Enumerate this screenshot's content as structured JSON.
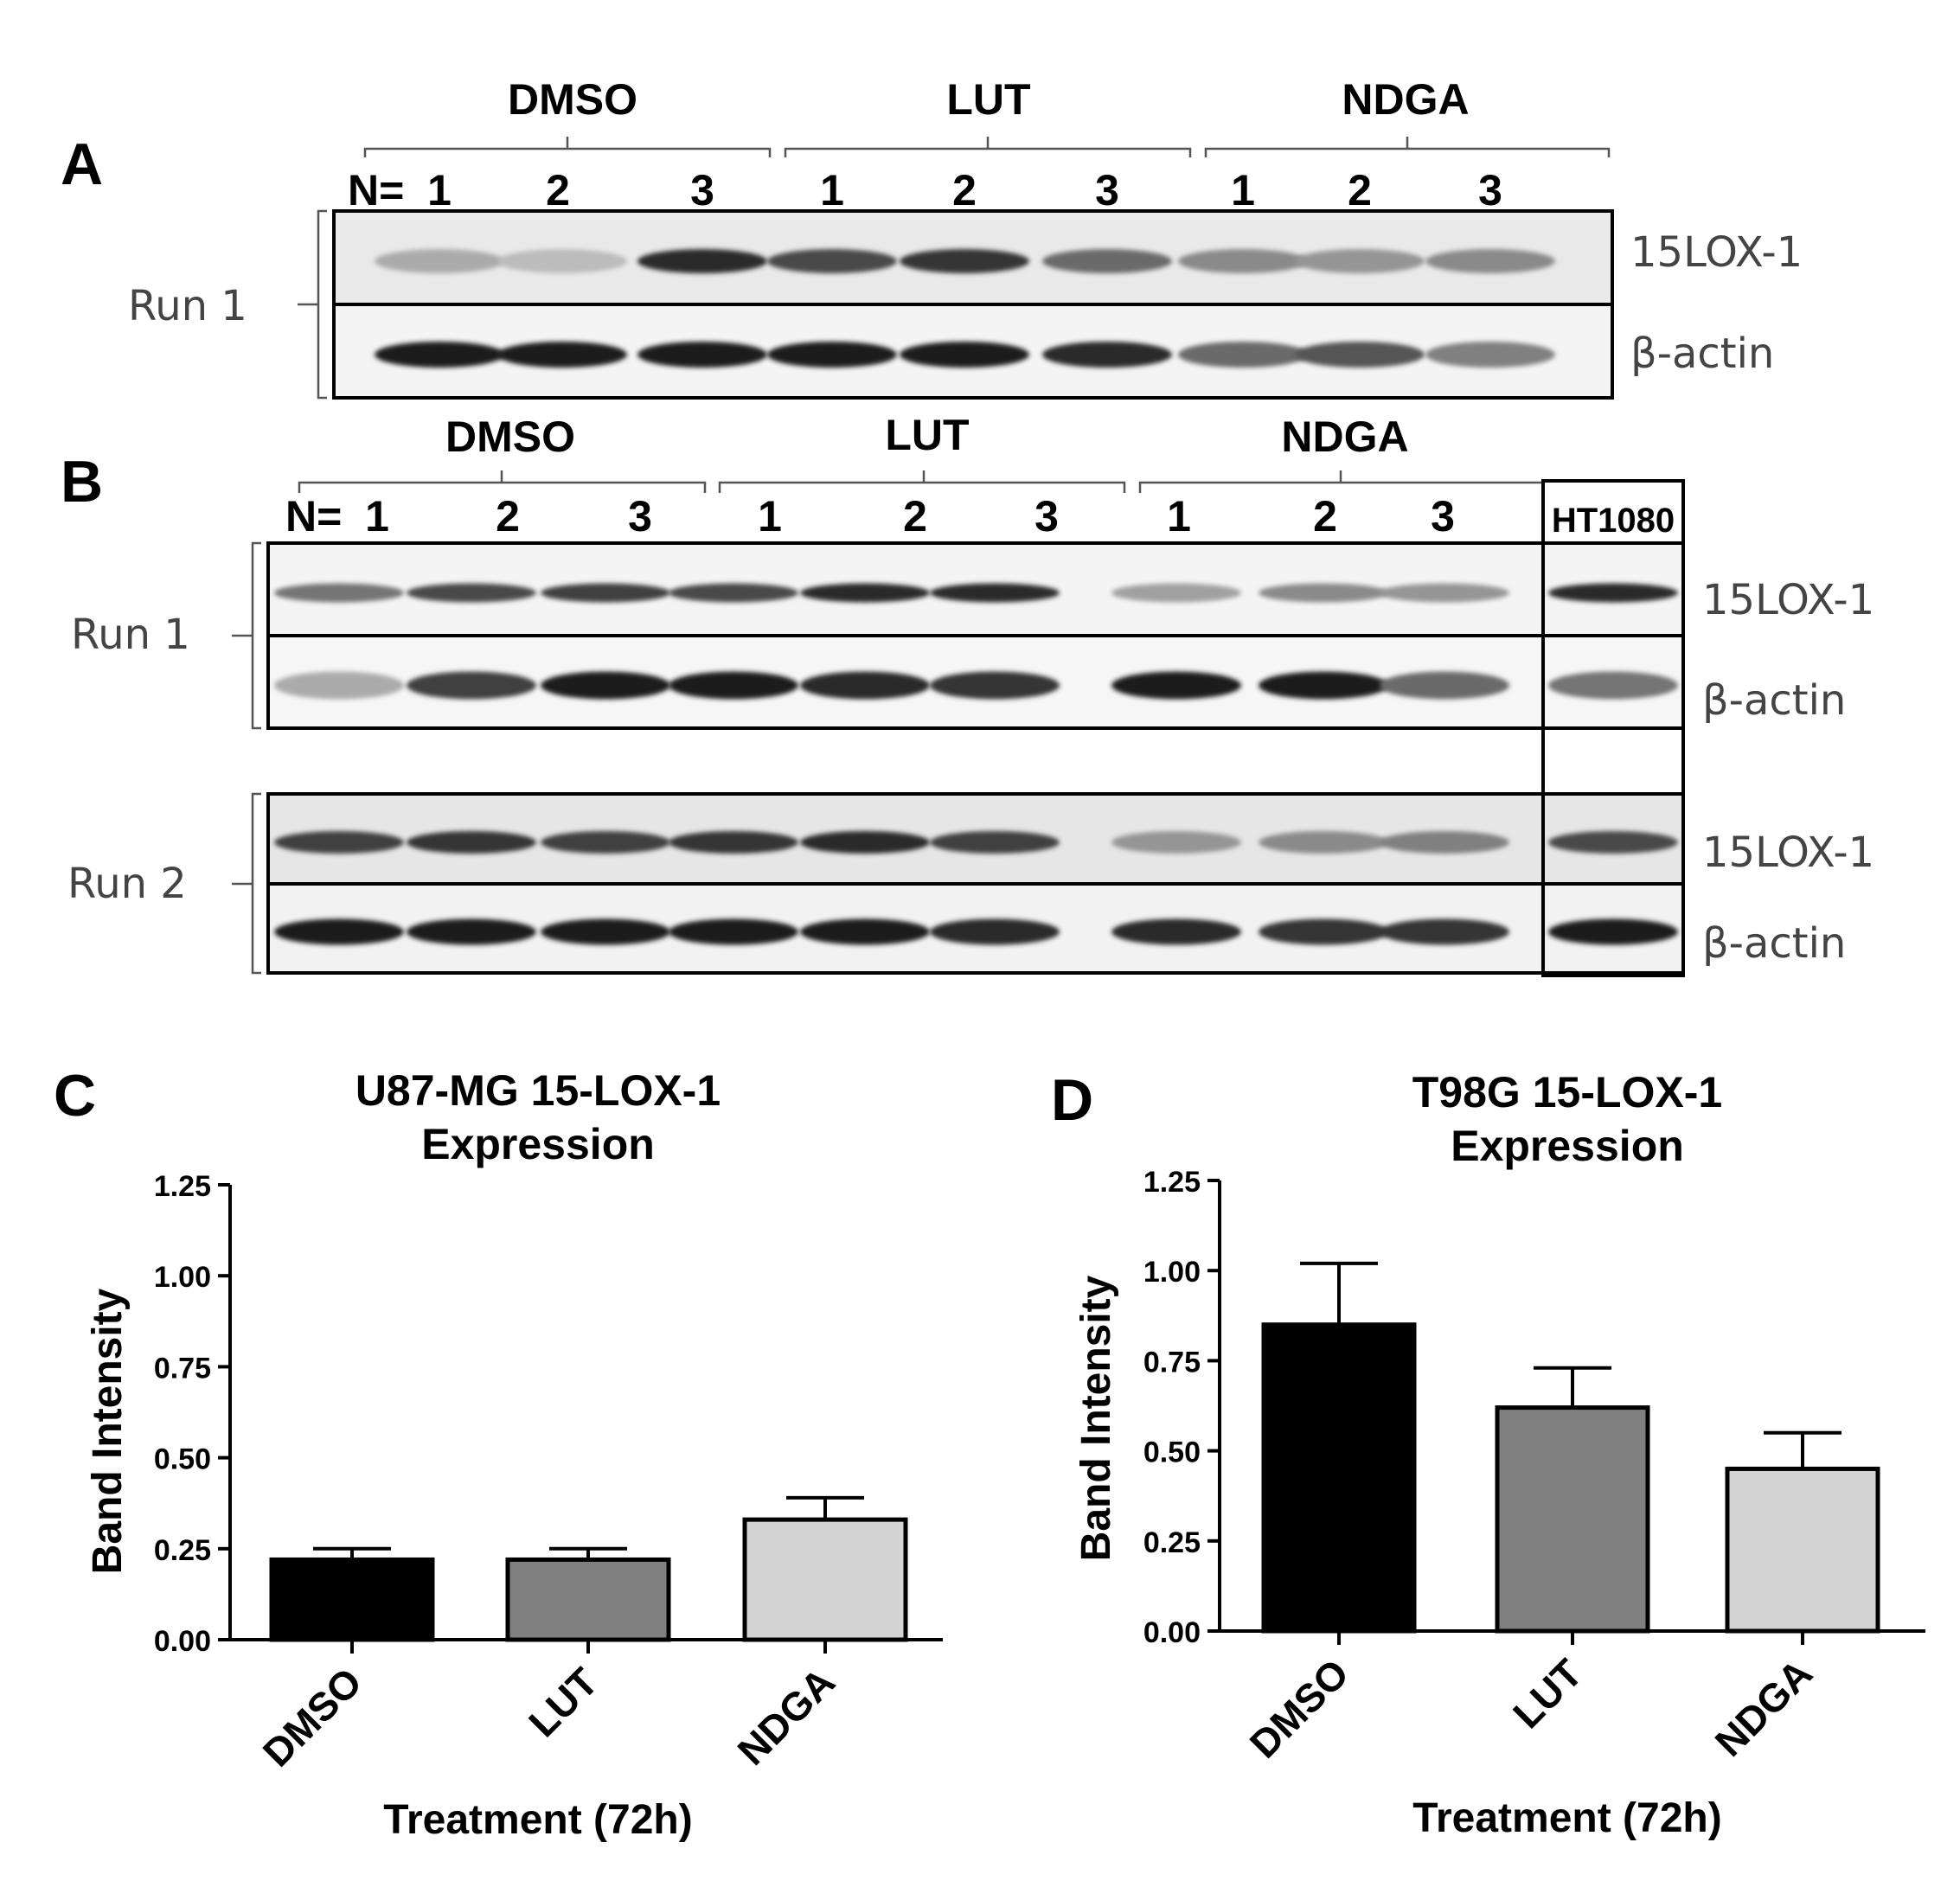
{
  "panel_letters": [
    "A",
    "B",
    "C",
    "D"
  ],
  "blot_a": {
    "groups": [
      "DMSO",
      "LUT",
      "NDGA"
    ],
    "n_prefix": "N=",
    "lanes": [
      "1",
      "2",
      "3",
      "1",
      "2",
      "3",
      "1",
      "2",
      "3"
    ],
    "run_label": "Run 1",
    "rows": [
      "15LOX-1",
      "β-actin"
    ],
    "intensity": {
      "15LOX-1": [
        0.3,
        0.22,
        0.9,
        0.75,
        0.85,
        0.6,
        0.45,
        0.4,
        0.45
      ],
      "β-actin": [
        0.95,
        0.95,
        0.95,
        0.95,
        0.95,
        0.9,
        0.6,
        0.7,
        0.5
      ]
    }
  },
  "blot_b": {
    "groups": [
      "DMSO",
      "LUT",
      "NDGA"
    ],
    "n_prefix": "N=",
    "lanes": [
      "1",
      "2",
      "3",
      "1",
      "2",
      "3",
      "1",
      "2",
      "3"
    ],
    "control_label": "HT1080",
    "rows": [
      "15LOX-1",
      "β-actin"
    ],
    "runs": [
      {
        "label": "Run 1",
        "intensity": {
          "15LOX-1": [
            0.55,
            0.75,
            0.8,
            0.75,
            0.9,
            0.9,
            0.35,
            0.45,
            0.4,
            0.9
          ],
          "β-actin": [
            0.3,
            0.8,
            0.95,
            0.95,
            0.9,
            0.85,
            0.95,
            0.95,
            0.6,
            0.55
          ]
        }
      },
      {
        "label": "Run 2",
        "intensity": {
          "15LOX-1": [
            0.8,
            0.85,
            0.8,
            0.85,
            0.9,
            0.8,
            0.4,
            0.45,
            0.5,
            0.75
          ],
          "β-actin": [
            0.95,
            0.95,
            0.95,
            0.95,
            0.95,
            0.9,
            0.9,
            0.85,
            0.85,
            0.95
          ]
        }
      }
    ]
  },
  "chart_data": [
    {
      "type": "bar",
      "title": "U87-MG 15-LOX-1 Expression",
      "title_lines": [
        "U87-MG 15-LOX-1",
        "Expression"
      ],
      "xlabel": "Treatment (72h)",
      "ylabel": "Band Intensity",
      "categories": [
        "DMSO",
        "LUT",
        "NDGA"
      ],
      "values": [
        0.22,
        0.22,
        0.33
      ],
      "error": [
        0.03,
        0.03,
        0.06
      ],
      "colors": [
        "#000000",
        "#808080",
        "#d3d3d3"
      ],
      "ylim": [
        0,
        1.25
      ],
      "yticks": [
        "0.00",
        "0.25",
        "0.50",
        "0.75",
        "1.00",
        "1.25"
      ]
    },
    {
      "type": "bar",
      "title": "T98G 15-LOX-1 Expression",
      "title_lines": [
        "T98G 15-LOX-1",
        "Expression"
      ],
      "xlabel": "Treatment (72h)",
      "ylabel": "Band Intensity",
      "categories": [
        "DMSO",
        "LUT",
        "NDGA"
      ],
      "values": [
        0.85,
        0.62,
        0.45
      ],
      "error": [
        0.17,
        0.11,
        0.1
      ],
      "colors": [
        "#000000",
        "#808080",
        "#d3d3d3"
      ],
      "ylim": [
        0,
        1.25
      ],
      "yticks": [
        "0.00",
        "0.25",
        "0.50",
        "0.75",
        "1.00",
        "1.25"
      ]
    }
  ]
}
